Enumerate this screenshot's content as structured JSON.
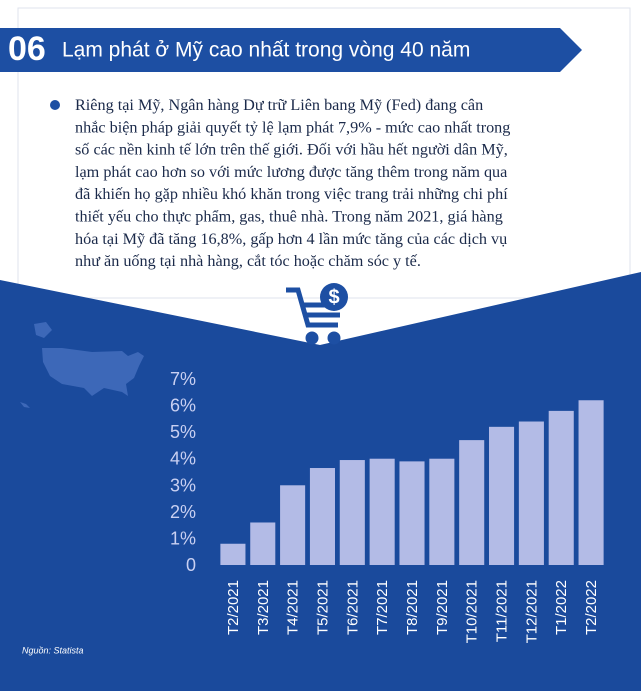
{
  "header": {
    "number": "06",
    "title": "Lạm phát ở Mỹ cao nhất trong vòng 40 năm"
  },
  "paragraph_lines": [
    "Riêng tại Mỹ, Ngân hàng Dự trữ Liên bang Mỹ (Fed) đang cân",
    "nhắc biện pháp giải quyết tỷ lệ lạm phát 7,9% - mức cao nhất trong",
    "số các nền kinh tế lớn trên thế giới. Đối với hầu hết người dân Mỹ,",
    "lạm phát cao hơn so với mức lương được tăng thêm trong năm qua",
    "đã khiến họ gặp nhiều khó khăn trong việc trang trải những chi phí",
    "thiết yếu cho thực phẩm, gas, thuê nhà. Trong năm 2021, giá hàng",
    "hóa tại Mỹ đã tăng 16,8%, gấp hơn 4 lần mức tăng của các dịch vụ",
    "như ăn uống tại nhà hàng, cắt tóc hoặc chăm sóc y tế."
  ],
  "source": "Nguồn: Statista",
  "chart_data": {
    "type": "bar",
    "categories": [
      "T2/2021",
      "T3/2021",
      "T4/2021",
      "T5/2021",
      "T6/2021",
      "T7/2021",
      "T8/2021",
      "T9/2021",
      "T10/2021",
      "T11/2021",
      "T12/2021",
      "T1/2022",
      "T2/2022"
    ],
    "values": [
      0.8,
      1.6,
      3.0,
      3.65,
      3.95,
      4.0,
      3.9,
      4.0,
      4.7,
      5.2,
      5.4,
      5.8,
      6.2
    ],
    "color": "#b3bbe6",
    "ylim": [
      0,
      7
    ],
    "yticks": [
      0,
      {
        "value": 1,
        "label": "1%"
      },
      {
        "value": 2,
        "label": "2%"
      },
      {
        "value": 3,
        "label": "3%"
      },
      {
        "value": 4,
        "label": "4%"
      },
      {
        "value": 5,
        "label": "5%"
      },
      {
        "value": 6,
        "label": "6%"
      },
      {
        "value": 7,
        "label": "7%"
      }
    ],
    "grid": false
  }
}
